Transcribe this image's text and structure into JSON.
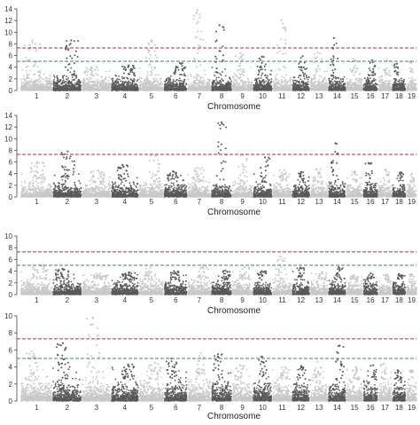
{
  "chart_data": [
    {
      "type": "scatter",
      "xlabel": "Chromosome",
      "ylabel": "",
      "ylim": [
        0,
        14
      ],
      "yticks": [
        0,
        2,
        4,
        6,
        8,
        10,
        12,
        14
      ],
      "categories": [
        "1",
        "2",
        "3",
        "4",
        "5",
        "6",
        "7",
        "8",
        "9",
        "10",
        "11",
        "12",
        "13",
        "14",
        "15",
        "16",
        "17",
        "18",
        "19"
      ],
      "thresholds": [
        {
          "value": 7.3,
          "color": "#b5283a"
        },
        {
          "value": 5.0,
          "color": "#3d7c8a"
        }
      ],
      "peaks": {
        "1": 8.6,
        "2": 8.6,
        "4": 4.3,
        "5": 8.6,
        "6": 4.7,
        "7": 13.8,
        "8": 11.2,
        "9": 6.4,
        "10": 5.8,
        "11": 12.1,
        "12": 5.9,
        "13": 6.5,
        "14": 9.0,
        "15": 5.4,
        "16": 5.2,
        "17": 5.2,
        "18": 4.6,
        "19": 5.0
      }
    },
    {
      "type": "scatter",
      "xlabel": "Chromosome",
      "ylabel": "",
      "ylim": [
        0,
        14
      ],
      "yticks": [
        0,
        2,
        4,
        6,
        8,
        10,
        12,
        14
      ],
      "categories": [
        "1",
        "2",
        "3",
        "4",
        "5",
        "6",
        "7",
        "8",
        "9",
        "10",
        "11",
        "12",
        "13",
        "14",
        "15",
        "16",
        "17",
        "18",
        "19"
      ],
      "thresholds": [
        {
          "value": 7.3,
          "color": "#b5283a"
        }
      ],
      "peaks": {
        "1": 6.0,
        "2": 7.8,
        "3": 4.5,
        "4": 5.5,
        "5": 7.1,
        "6": 4.4,
        "7": 5.0,
        "8": 12.8,
        "9": 7.2,
        "10": 6.8,
        "11": 4.6,
        "12": 4.3,
        "13": 4.8,
        "14": 9.2,
        "15": 4.4,
        "16": 5.8,
        "17": 4.7,
        "18": 4.2,
        "19": 4.0
      }
    },
    {
      "type": "scatter",
      "xlabel": "Chromosome",
      "ylabel": "",
      "ylim": [
        0,
        10
      ],
      "yticks": [
        0,
        2,
        4,
        6,
        8,
        10
      ],
      "categories": [
        "1",
        "2",
        "3",
        "4",
        "5",
        "6",
        "7",
        "8",
        "9",
        "10",
        "11",
        "12",
        "13",
        "14",
        "15",
        "16",
        "17",
        "18",
        "19"
      ],
      "thresholds": [
        {
          "value": 7.3,
          "color": "#b5283a"
        },
        {
          "value": 5.0,
          "color": "#3d7c8a"
        }
      ],
      "peaks": {
        "1": 5.0,
        "2": 4.4,
        "3": 3.6,
        "4": 3.8,
        "5": 4.6,
        "6": 4.0,
        "7": 4.8,
        "8": 4.1,
        "9": 4.7,
        "10": 4.0,
        "11": 6.5,
        "12": 4.6,
        "13": 3.9,
        "14": 4.7,
        "15": 3.3,
        "16": 3.6,
        "17": 3.4,
        "18": 3.5,
        "19": 3.5
      }
    },
    {
      "type": "scatter",
      "xlabel": "Chromosome",
      "ylabel": "",
      "ylim": [
        0,
        10
      ],
      "yticks": [
        0,
        2,
        4,
        6,
        8,
        10
      ],
      "categories": [
        "1",
        "2",
        "3",
        "4",
        "5",
        "6",
        "7",
        "8",
        "9",
        "10",
        "11",
        "12",
        "13",
        "14",
        "15",
        "16",
        "17",
        "18",
        "19"
      ],
      "thresholds": [
        {
          "value": 7.3,
          "color": "#b5283a"
        },
        {
          "value": 5.0,
          "color": "#3d7c8a"
        }
      ],
      "peaks": {
        "1": 5.8,
        "2": 6.8,
        "3": 9.8,
        "4": 4.3,
        "5": 4.5,
        "6": 5.0,
        "7": 5.6,
        "8": 5.5,
        "9": 4.2,
        "10": 5.2,
        "11": 4.0,
        "12": 4.1,
        "13": 4.6,
        "14": 6.5,
        "15": 4.0,
        "16": 4.2,
        "17": 4.4,
        "18": 3.6,
        "19": 3.6
      }
    }
  ],
  "colors": {
    "odd_chromosome": "#c8c8c8",
    "even_chromosome": "#595959",
    "axis": "#444444"
  }
}
